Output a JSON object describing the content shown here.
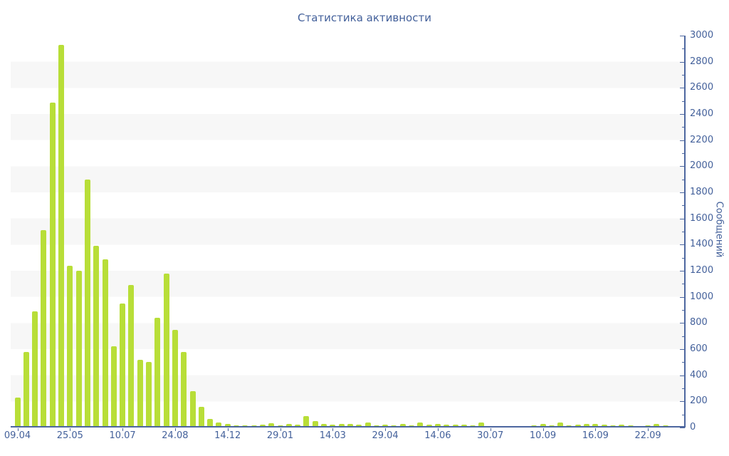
{
  "page": {
    "title": "Статистика активности"
  },
  "chart_data": {
    "type": "bar",
    "title": "Статистика активности",
    "xlabel": "",
    "ylabel": "Сообщений",
    "ylim": [
      0,
      3000
    ],
    "y_major_tick_step": 200,
    "y_minor_tick_step": 100,
    "y_tick_labels": [
      "0",
      "200",
      "400",
      "600",
      "800",
      "1000",
      "1200",
      "1400",
      "1600",
      "1800",
      "2000",
      "2200",
      "2400",
      "2600",
      "2800",
      "3000"
    ],
    "x_tick_labels": [
      "09.04",
      "25.05",
      "10.07",
      "24.08",
      "14.12",
      "29.01",
      "14.03",
      "29.04",
      "14.06",
      "30.07",
      "10.09",
      "16.09",
      "22.09"
    ],
    "x_label_every_n_bars": 6,
    "grid": "alternating horizontal bands of 200 units",
    "legend_position": "none",
    "values": [
      230,
      580,
      890,
      1510,
      2490,
      2930,
      1240,
      1200,
      1900,
      1390,
      1290,
      620,
      950,
      1090,
      520,
      500,
      840,
      1180,
      750,
      580,
      280,
      160,
      65,
      40,
      30,
      15,
      16,
      15,
      22,
      31,
      16,
      29,
      24,
      90,
      49,
      25,
      20,
      27,
      25,
      20,
      36,
      18,
      22,
      18,
      27,
      18,
      36,
      24,
      27,
      20,
      24,
      20,
      15,
      40,
      11,
      7,
      9,
      11,
      10,
      15,
      30,
      16,
      36,
      18,
      22,
      25,
      29,
      22,
      18,
      24,
      18,
      11,
      16,
      25,
      16,
      7
    ],
    "colors": {
      "bar": "#b8de38",
      "axis": "#4d679f",
      "text": "#44619b",
      "stripe": "#f7f7f7",
      "background": "#ffffff"
    }
  }
}
